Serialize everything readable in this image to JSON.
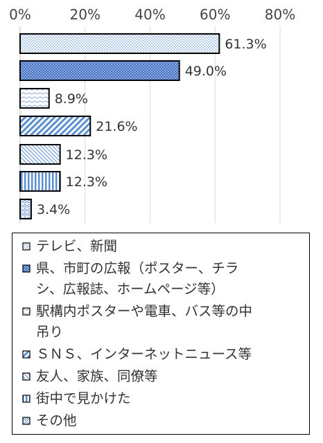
{
  "chart_data": {
    "type": "bar",
    "orientation": "horizontal",
    "xlim": [
      0,
      80
    ],
    "x_ticks": [
      "0%",
      "20%",
      "40%",
      "60%",
      "80%"
    ],
    "x_tick_values": [
      0,
      20,
      40,
      60,
      80
    ],
    "grid": "vertical",
    "legend_placement": "bottom",
    "categories": [
      "テレビ、新聞",
      "県、市町の広報（ポスター、チラシ、広報誌、ホームページ等）",
      "駅構内ポスターや電車、バス等の中吊り",
      "ＳＮＳ、インターネットニュース等",
      "友人、家族、同僚等",
      "街中で見かけた",
      "その他"
    ],
    "values": [
      61.3,
      49.0,
      8.9,
      21.6,
      12.3,
      12.3,
      3.4
    ],
    "data_labels": [
      "61.3%",
      "49.0%",
      "8.9%",
      "21.6%",
      "12.3%",
      "12.3%",
      "3.4%"
    ],
    "legend": {
      "entries": [
        [
          "テレビ、新聞"
        ],
        [
          "県、市町の広報（ポスター、チラ",
          "シ、広報誌、ホームページ等）"
        ],
        [
          "駅構内ポスターや電車、バス等の中",
          "吊り"
        ],
        [
          "ＳＮＳ、インターネットニュース等"
        ],
        [
          "友人、家族、同僚等"
        ],
        [
          "街中で見かけた"
        ],
        [
          "その他"
        ]
      ]
    },
    "colors": {
      "accent_blue": "#5b8fd0",
      "dark_blue": "#4472c4",
      "border": "#000000",
      "gridline": "#d9d9d9"
    }
  }
}
